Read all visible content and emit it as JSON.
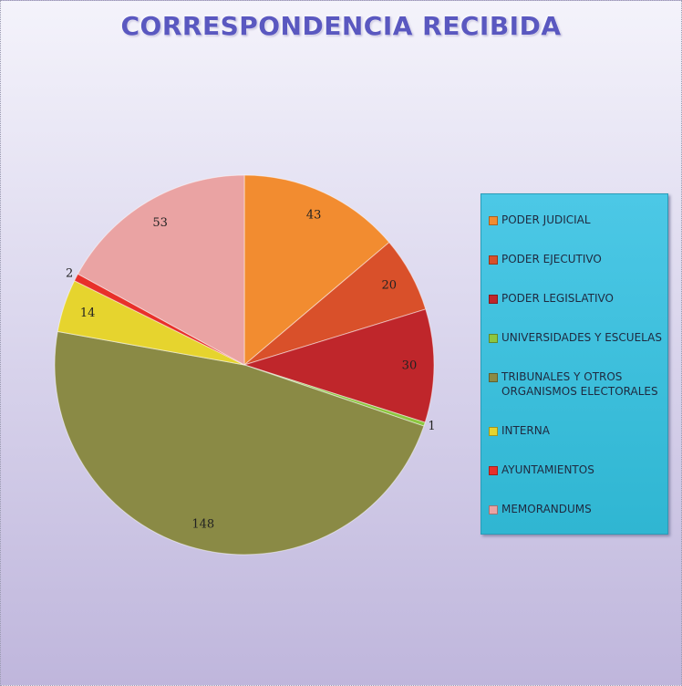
{
  "chart_data": {
    "type": "pie",
    "title": "CORRESPONDENCIA RECIBIDA",
    "categories": [
      "PODER JUDICIAL",
      "PODER EJECUTIVO",
      "PODER LEGISLATIVO",
      "UNIVERSIDADES Y ESCUELAS",
      "TRIBUNALES Y OTROS ORGANISMOS ELECTORALES",
      "INTERNA",
      "AYUNTAMIENTOS",
      "MEMORANDUMS"
    ],
    "values": [
      43,
      20,
      30,
      1,
      148,
      14,
      2,
      53
    ],
    "colors": [
      "#f28c30",
      "#d9502a",
      "#bf262b",
      "#8cc63f",
      "#8a8a45",
      "#e6d42e",
      "#e8302a",
      "#eaa3a3"
    ],
    "legend": "right"
  }
}
